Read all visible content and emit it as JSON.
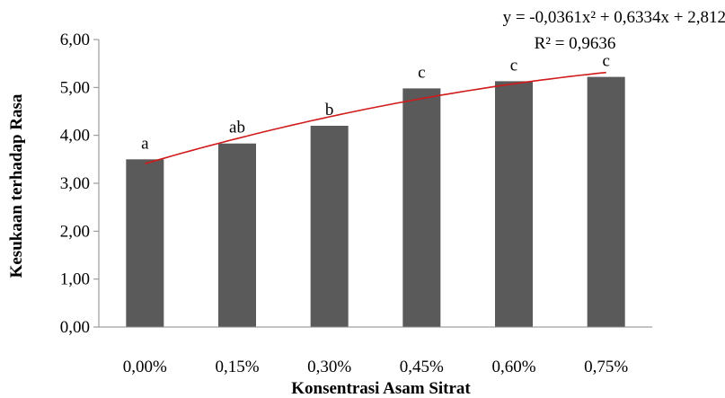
{
  "chart_data": {
    "type": "bar",
    "categories": [
      "0,00%",
      "0,15%",
      "0,30%",
      "0,45%",
      "0,60%",
      "0,75%"
    ],
    "values": [
      3.5,
      3.83,
      4.2,
      4.98,
      5.13,
      5.22
    ],
    "significance_labels": [
      "a",
      "ab",
      "b",
      "c",
      "c",
      "c"
    ],
    "xlabel": "Konsentrasi Asam Sitrat",
    "ylabel": "Kesukaan terhadap Rasa",
    "ylim": [
      0,
      6
    ],
    "yticks": [
      "0,00",
      "1,00",
      "2,00",
      "3,00",
      "4,00",
      "5,00",
      "6,00"
    ],
    "grid": false,
    "trendline": {
      "type": "polynomial",
      "equation": "y = -0,0361x² + 0,6334x + 2,812",
      "r_squared": "R² = 0,9636",
      "coefficients": [
        -0.0361,
        0.6334,
        2.812
      ]
    },
    "colors": {
      "bar": "#5a5a5a",
      "trendline": "#d11a1a",
      "axis": "#8a8a8a"
    }
  }
}
